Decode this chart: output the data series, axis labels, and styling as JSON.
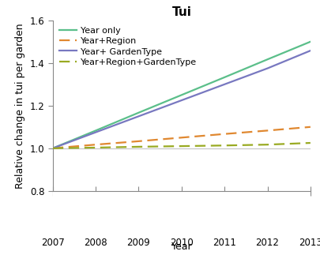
{
  "title": "Tui",
  "xlabel": "Year",
  "ylabel": "Relative change in tui per garden",
  "xlim": [
    2007,
    2013
  ],
  "ylim": [
    0.8,
    1.6
  ],
  "yticks": [
    0.8,
    1.0,
    1.2,
    1.4,
    1.6
  ],
  "xticks": [
    2007,
    2008,
    2009,
    2010,
    2011,
    2012,
    2013
  ],
  "years": [
    2007,
    2008,
    2009,
    2010,
    2011,
    2012,
    2013
  ],
  "lines": [
    {
      "label": "Year only",
      "color": "#5bbf8a",
      "linestyle": "solid",
      "values": [
        1.0,
        1.083,
        1.167,
        1.25,
        1.333,
        1.417,
        1.5
      ]
    },
    {
      "label": "Year+Region",
      "color": "#e08830",
      "linestyle": "dashed",
      "values": [
        1.0,
        1.017,
        1.033,
        1.05,
        1.067,
        1.083,
        1.1
      ]
    },
    {
      "label": "Year+ GardenType",
      "color": "#7878c0",
      "linestyle": "solid",
      "values": [
        1.0,
        1.075,
        1.15,
        1.225,
        1.3,
        1.375,
        1.458
      ]
    },
    {
      "label": "Year+Region+GardenType",
      "color": "#99aa22",
      "linestyle": "dashed",
      "values": [
        1.0,
        1.003,
        1.007,
        1.01,
        1.013,
        1.017,
        1.025
      ]
    }
  ],
  "hline_y": 1.0,
  "hline_color": "#c8c8c8",
  "spine_color": "#888888",
  "background_color": "#ffffff",
  "title_fontsize": 11,
  "label_fontsize": 9,
  "tick_fontsize": 8.5,
  "legend_fontsize": 8
}
